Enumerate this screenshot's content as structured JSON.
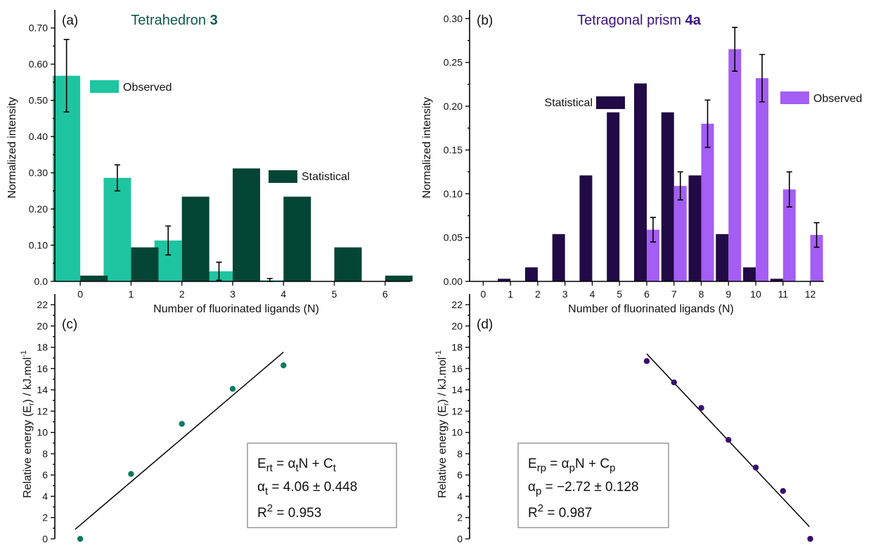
{
  "chart_data": [
    {
      "type": "bar",
      "panel_label": "(a)",
      "title": "Tetrahedron 3",
      "title_plain": "Tetrahedron ",
      "title_bold": "3",
      "xlabel": "Number of fluorinated ligands (N)",
      "ylabel": "Normalized intensity",
      "categories": [
        "0",
        "1",
        "2",
        "3",
        "4",
        "5",
        "6"
      ],
      "ylim": [
        0,
        0.75
      ],
      "yticks": [
        "0.0",
        "0.10",
        "0.20",
        "0.30",
        "0.40",
        "0.50",
        "0.60",
        "0.70"
      ],
      "series": [
        {
          "name": "Observed",
          "color": "#1fc4a0",
          "values": [
            0.568,
            0.286,
            0.113,
            0.028,
            0.003,
            0,
            0
          ],
          "errors": [
            0.1,
            0.036,
            0.04,
            0.025,
            0.005,
            null,
            null
          ]
        },
        {
          "name": "Statistical",
          "color": "#044536",
          "values": [
            0.016,
            0.094,
            0.234,
            0.312,
            0.234,
            0.094,
            0.016
          ]
        }
      ],
      "legend": [
        "Observed",
        "Statistical"
      ]
    },
    {
      "type": "bar",
      "panel_label": "(b)",
      "title": "Tetragonal prism 4a",
      "title_plain": "Tetragonal prism ",
      "title_bold": "4a",
      "xlabel": "Number of fluorinated ligands (N)",
      "ylabel": "Normalized intensity",
      "categories": [
        "0",
        "1",
        "2",
        "3",
        "4",
        "5",
        "6",
        "7",
        "8",
        "9",
        "10",
        "11",
        "12"
      ],
      "ylim": [
        0,
        0.31
      ],
      "yticks": [
        "0.00",
        "0.05",
        "0.10",
        "0.15",
        "0.20",
        "0.25",
        "0.30"
      ],
      "series": [
        {
          "name": "Statistical",
          "color": "#210a45",
          "values": [
            0.0002,
            0.003,
            0.016,
            0.054,
            0.121,
            0.193,
            0.226,
            0.193,
            0.121,
            0.054,
            0.016,
            0.003,
            0.0002
          ]
        },
        {
          "name": "Observed",
          "color": "#a45ef3",
          "values": [
            0,
            0,
            0,
            0,
            0,
            0,
            0.059,
            0.109,
            0.18,
            0.265,
            0.232,
            0.105,
            0.053
          ],
          "errors": [
            null,
            null,
            null,
            null,
            null,
            null,
            0.014,
            0.016,
            0.027,
            0.025,
            0.027,
            0.02,
            0.014
          ]
        }
      ],
      "legend": [
        "Statistical",
        "Observed"
      ]
    },
    {
      "type": "scatter",
      "panel_label": "(c)",
      "ylabel": "Relative energy (Er) / kJ.mol-1",
      "ylabel_main": "Relative energy (E",
      "ylabel_sub": "r",
      "ylabel_mid": ") / kJ.mol",
      "ylabel_sup": "-1",
      "ylim": [
        0,
        23
      ],
      "yticks": [
        "0",
        "2",
        "4",
        "6",
        "8",
        "10",
        "12",
        "14",
        "16",
        "18",
        "20",
        "22"
      ],
      "xlim": [
        -0.5,
        6.5
      ],
      "point_color": "#0e7a62",
      "x": [
        0,
        1,
        2,
        3,
        4
      ],
      "y": [
        0,
        6.1,
        10.8,
        14.1,
        16.3
      ],
      "fit": {
        "slope": 4.06,
        "intercept": 1.3,
        "x_start": -0.1,
        "x_end": 4.0
      },
      "equation": {
        "line1": {
          "a": "E",
          "a_sub": "rt",
          "b": " = α",
          "b_sub": "t",
          "c": "N + C",
          "c_sub": "t"
        },
        "line2": {
          "a": "α",
          "a_sub": "t",
          "b": " = 4.06 ± 0.448"
        },
        "line3": {
          "a": "R",
          "a_sup": "2",
          "b": " = 0.953"
        }
      }
    },
    {
      "type": "scatter",
      "panel_label": "(d)",
      "ylabel": "Relative energy (Er) / kJ.mol-1",
      "ylabel_main": "Relative energy (E",
      "ylabel_sub": "r",
      "ylabel_mid": ") / kJ.mol",
      "ylabel_sup": "-1",
      "ylim": [
        0,
        23
      ],
      "yticks": [
        "0",
        "2",
        "4",
        "6",
        "8",
        "10",
        "12",
        "14",
        "16",
        "18",
        "20",
        "22"
      ],
      "xlim": [
        -0.5,
        12.5
      ],
      "point_color": "#3a0d6e",
      "x": [
        6,
        7,
        8,
        9,
        10,
        11,
        12
      ],
      "y": [
        16.7,
        14.7,
        12.3,
        9.3,
        6.7,
        4.5,
        0
      ],
      "fit": {
        "slope": -2.72,
        "intercept": 33.7,
        "x_start": 6.0,
        "x_end": 11.97
      },
      "equation": {
        "line1": {
          "a": "E",
          "a_sub": "rp",
          "b": " = α",
          "b_sub": "p",
          "c": "N + C",
          "c_sub": "p"
        },
        "line2": {
          "a": "α",
          "a_sub": "p",
          "b": " = −2.72 ± 0.128"
        },
        "line3": {
          "a": "R",
          "a_sup": "2",
          "b": " = 0.987"
        }
      }
    }
  ]
}
